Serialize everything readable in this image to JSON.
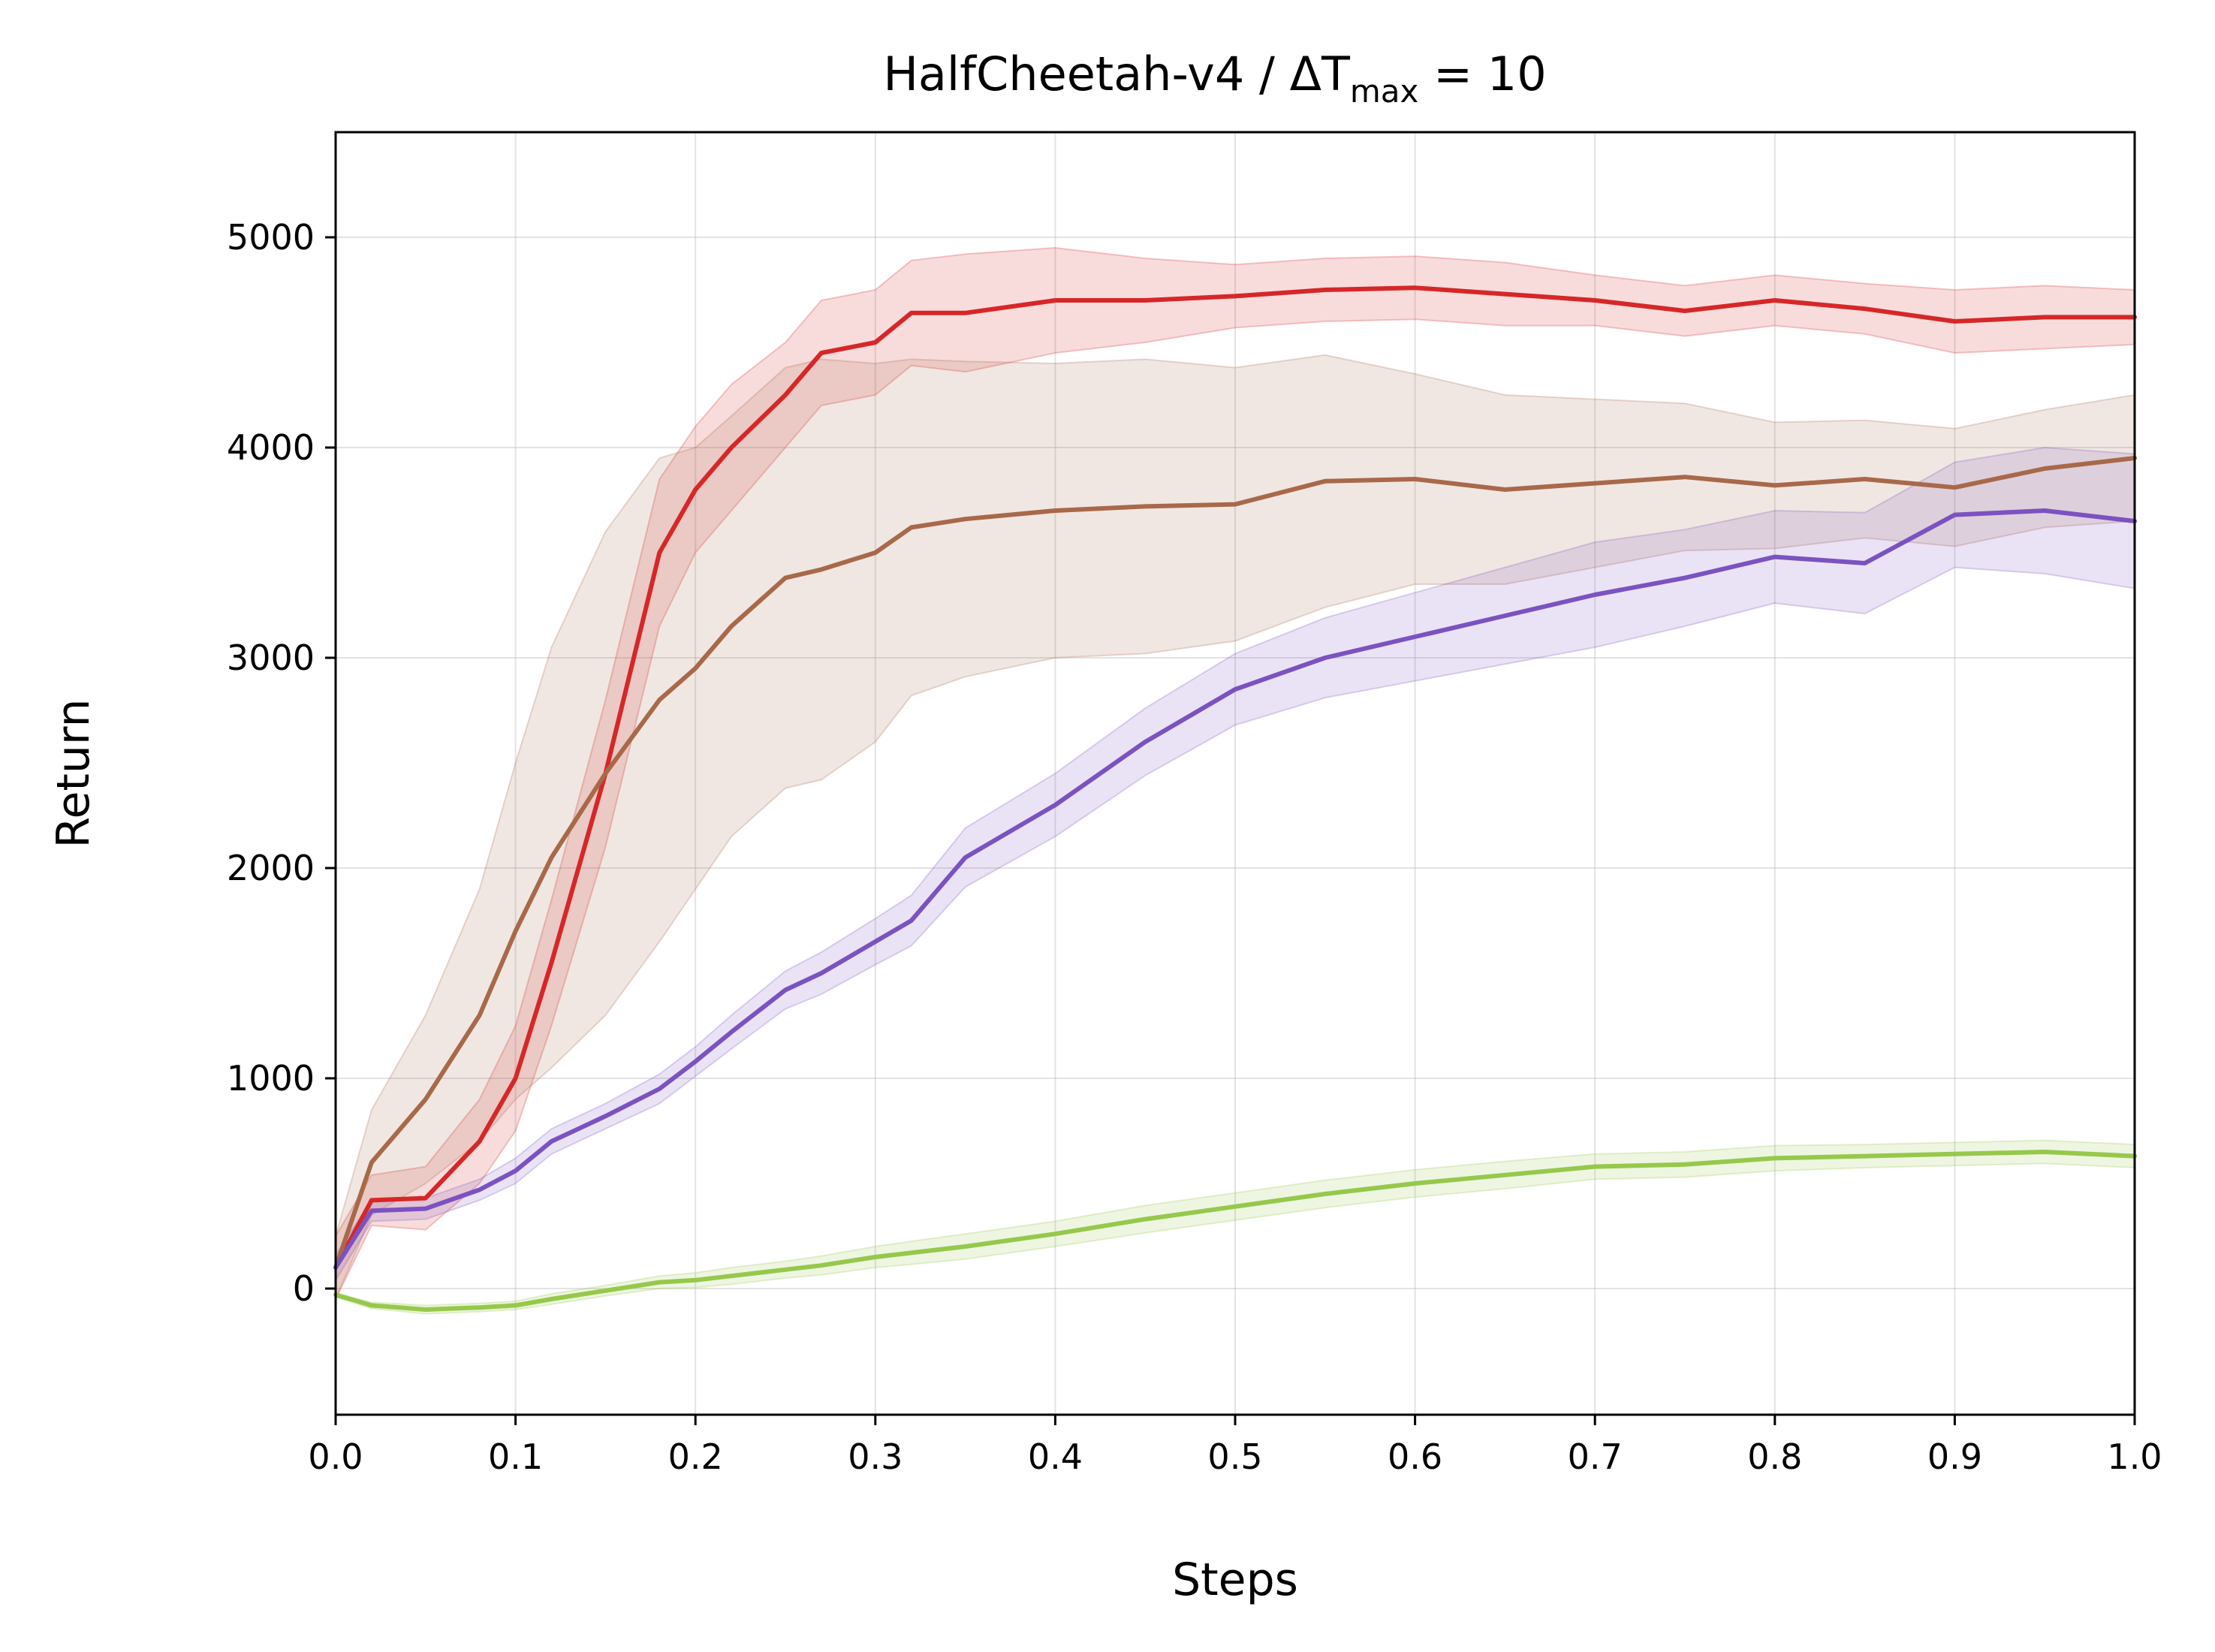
{
  "chart_data": {
    "type": "line",
    "title": {
      "prefix": "HalfCheetah-v4 / ΔT",
      "subscript": "max",
      "suffix": " = 10"
    },
    "xlabel": "Steps",
    "ylabel": "Return",
    "xlim": [
      0.0,
      1.0
    ],
    "ylim": [
      -600,
      5500
    ],
    "xticks": [
      "0.0",
      "0.1",
      "0.2",
      "0.3",
      "0.4",
      "0.5",
      "0.6",
      "0.7",
      "0.8",
      "0.9",
      "1.0"
    ],
    "yticks": [
      "0",
      "1000",
      "2000",
      "3000",
      "4000",
      "5000"
    ],
    "grid": true,
    "x": [
      0,
      0.02,
      0.05,
      0.08,
      0.1,
      0.12,
      0.15,
      0.18,
      0.2,
      0.22,
      0.25,
      0.27,
      0.3,
      0.32,
      0.35,
      0.4,
      0.45,
      0.5,
      0.55,
      0.6,
      0.65,
      0.7,
      0.75,
      0.8,
      0.85,
      0.9,
      0.95,
      1.0
    ],
    "series": [
      {
        "color": "#d62728",
        "values": [
          100,
          420,
          430,
          700,
          1000,
          1550,
          2450,
          3500,
          3800,
          4000,
          4250,
          4450,
          4500,
          4640,
          4640,
          4700,
          4700,
          4720,
          4750,
          4760,
          4730,
          4700,
          4650,
          4700,
          4660,
          4600,
          4620,
          4620
        ],
        "band": [
          150,
          120,
          150,
          200,
          250,
          300,
          350,
          350,
          300,
          300,
          250,
          250,
          250,
          250,
          280,
          250,
          200,
          150,
          150,
          150,
          150,
          120,
          120,
          120,
          120,
          150,
          150,
          130
        ]
      },
      {
        "color": "#a8694a",
        "values": [
          100,
          600,
          900,
          1300,
          1700,
          2050,
          2450,
          2800,
          2950,
          3150,
          3380,
          3420,
          3500,
          3620,
          3660,
          3700,
          3720,
          3730,
          3840,
          3850,
          3800,
          3830,
          3860,
          3820,
          3850,
          3810,
          3900,
          3950
        ],
        "band": [
          150,
          250,
          400,
          600,
          800,
          1000,
          1150,
          1150,
          1050,
          1000,
          1000,
          1000,
          900,
          800,
          750,
          700,
          700,
          650,
          600,
          500,
          450,
          400,
          350,
          300,
          280,
          280,
          280,
          300
        ]
      },
      {
        "color": "#7b52c0",
        "values": [
          100,
          370,
          380,
          470,
          560,
          700,
          820,
          950,
          1080,
          1220,
          1420,
          1500,
          1650,
          1750,
          2050,
          2300,
          2600,
          2850,
          3000,
          3100,
          3200,
          3300,
          3380,
          3480,
          3450,
          3680,
          3700,
          3650
        ],
        "band": [
          60,
          50,
          50,
          50,
          60,
          60,
          60,
          70,
          70,
          80,
          90,
          100,
          110,
          120,
          140,
          150,
          160,
          170,
          190,
          210,
          230,
          250,
          230,
          220,
          240,
          250,
          300,
          320
        ]
      },
      {
        "color": "#96c84b",
        "values": [
          -30,
          -80,
          -100,
          -90,
          -80,
          -50,
          -10,
          30,
          40,
          60,
          90,
          110,
          150,
          170,
          200,
          260,
          330,
          390,
          450,
          500,
          540,
          580,
          590,
          620,
          630,
          640,
          650,
          630
        ],
        "band": [
          10,
          15,
          20,
          20,
          20,
          25,
          25,
          30,
          35,
          40,
          40,
          45,
          50,
          55,
          60,
          60,
          65,
          65,
          65,
          65,
          65,
          60,
          60,
          60,
          55,
          55,
          55,
          55
        ]
      }
    ]
  }
}
